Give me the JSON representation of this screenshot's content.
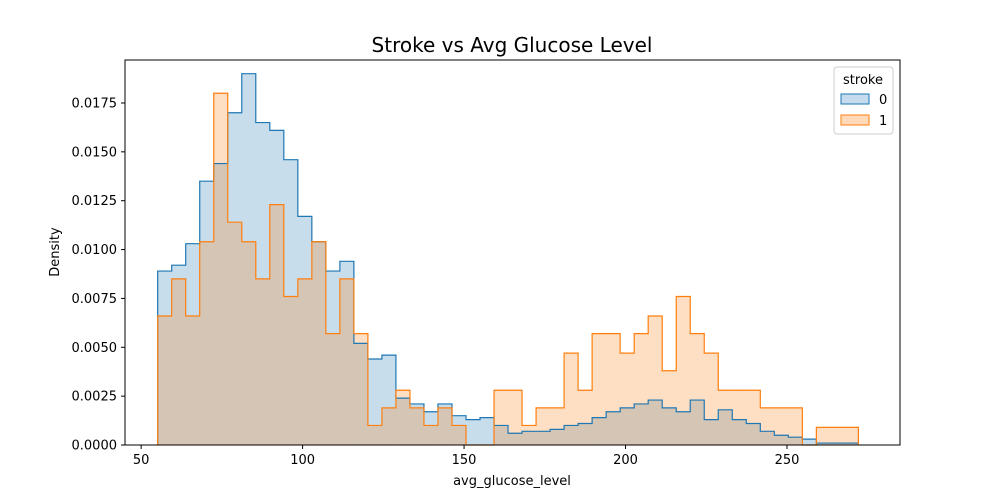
{
  "chart_data": {
    "type": "histogram-step",
    "title": "Stroke vs Avg Glucose Level",
    "xlabel": "avg_glucose_level",
    "ylabel": "Density",
    "xlim": [
      45,
      285
    ],
    "ylim": [
      0,
      0.0197
    ],
    "xticks": [
      50,
      100,
      150,
      200,
      250
    ],
    "xtick_labels": [
      "50",
      "100",
      "150",
      "200",
      "250"
    ],
    "yticks": [
      0,
      0.0025,
      0.005,
      0.0075,
      0.01,
      0.0125,
      0.015,
      0.0175
    ],
    "ytick_labels": [
      "0.0000",
      "0.0025",
      "0.0050",
      "0.0075",
      "0.0100",
      "0.0125",
      "0.0150",
      "0.0175"
    ],
    "bin_edges": [
      55.12,
      59.46,
      63.8,
      68.14,
      72.48,
      76.82,
      81.16,
      85.5,
      89.84,
      94.18,
      98.52,
      102.86,
      107.2,
      111.54,
      115.88,
      120.22,
      124.56,
      128.9,
      133.24,
      137.58,
      141.92,
      146.26,
      150.6,
      154.94,
      159.28,
      163.62,
      167.96,
      172.3,
      176.64,
      180.98,
      185.32,
      189.66,
      194.0,
      198.34,
      202.68,
      207.02,
      211.36,
      215.7,
      220.04,
      224.38,
      228.72,
      233.06,
      237.4,
      241.74,
      246.08,
      250.42,
      254.76,
      259.1,
      263.44,
      267.78,
      272.12
    ],
    "legend": {
      "title": "stroke",
      "position": "top-right"
    },
    "series": [
      {
        "name": "0",
        "color": "#1f77b4",
        "fill": "#c6dbed",
        "values": [
          0.0089,
          0.0092,
          0.0103,
          0.0135,
          0.0144,
          0.017,
          0.019,
          0.0165,
          0.0161,
          0.0146,
          0.0117,
          0.0104,
          0.0089,
          0.0094,
          0.0052,
          0.0044,
          0.0046,
          0.0024,
          0.0021,
          0.0017,
          0.0021,
          0.0015,
          0.0013,
          0.0014,
          0.001,
          0.0006,
          0.0007,
          0.0007,
          0.0008,
          0.001,
          0.0011,
          0.0014,
          0.0017,
          0.0019,
          0.0021,
          0.0023,
          0.0019,
          0.0017,
          0.0023,
          0.0013,
          0.0018,
          0.0013,
          0.0011,
          0.0007,
          0.0005,
          0.0004,
          0.0003,
          0.0001,
          0.0001,
          0.0001
        ]
      },
      {
        "name": "1",
        "color": "#ff7f0e",
        "fill": "#ffd9b8",
        "values": [
          0.0066,
          0.0085,
          0.0066,
          0.0104,
          0.018,
          0.0114,
          0.0104,
          0.0085,
          0.0123,
          0.0076,
          0.0085,
          0.0104,
          0.0057,
          0.0085,
          0.0057,
          0.001,
          0.0019,
          0.0028,
          0.0019,
          0.001,
          0.0019,
          0.001,
          0.0,
          0.0,
          0.0028,
          0.0028,
          0.001,
          0.0019,
          0.0019,
          0.0047,
          0.0028,
          0.0057,
          0.0057,
          0.0047,
          0.0057,
          0.0066,
          0.0038,
          0.0076,
          0.0057,
          0.0047,
          0.0028,
          0.0028,
          0.0028,
          0.0019,
          0.0019,
          0.0019,
          0.0,
          0.0009,
          0.0009,
          0.0009
        ]
      }
    ]
  }
}
